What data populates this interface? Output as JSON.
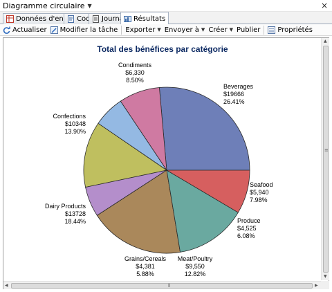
{
  "window": {
    "title": "Diagramme circulaire"
  },
  "tabs": [
    {
      "label": "Données d'entrée",
      "active": false
    },
    {
      "label": "Code",
      "active": false
    },
    {
      "label": "Journal",
      "active": false
    },
    {
      "label": "Résultats",
      "active": true
    }
  ],
  "toolbar": {
    "refresh": "Actualiser",
    "modify_task": "Modifier la tâche",
    "export": "Exporter",
    "send_to": "Envoyer à",
    "create": "Créer",
    "publish": "Publier",
    "properties": "Propriétés"
  },
  "chart_data": {
    "type": "pie",
    "title": "Total des bénéfices par catégorie",
    "slices": [
      {
        "name": "Beverages",
        "amount": "$19666",
        "value": 19666,
        "percent": "26.41%",
        "color": "#6e7fb8"
      },
      {
        "name": "Seafood",
        "amount": "$5,940",
        "value": 5940,
        "percent": "7.98%",
        "color": "#cf7aa2"
      },
      {
        "name": "Produce",
        "amount": "$4,525",
        "value": 4525,
        "percent": "6.08%",
        "color": "#94b9e3"
      },
      {
        "name": "Meat/Poultry",
        "amount": "$9,550",
        "value": 9550,
        "percent": "12.82%",
        "color": "#bfbf5f"
      },
      {
        "name": "Grains/Cereals",
        "amount": "$4,381",
        "value": 4381,
        "percent": "5.88%",
        "color": "#b48ecb"
      },
      {
        "name": "Dairy Products",
        "amount": "$13728",
        "value": 13728,
        "percent": "18.44%",
        "color": "#aa885b"
      },
      {
        "name": "Confections",
        "amount": "$10348",
        "value": 10348,
        "percent": "13.90%",
        "color": "#6aa9a0"
      },
      {
        "name": "Condiments",
        "amount": "$6,330",
        "value": 6330,
        "percent": "8.50%",
        "color": "#d65f5f"
      }
    ]
  }
}
